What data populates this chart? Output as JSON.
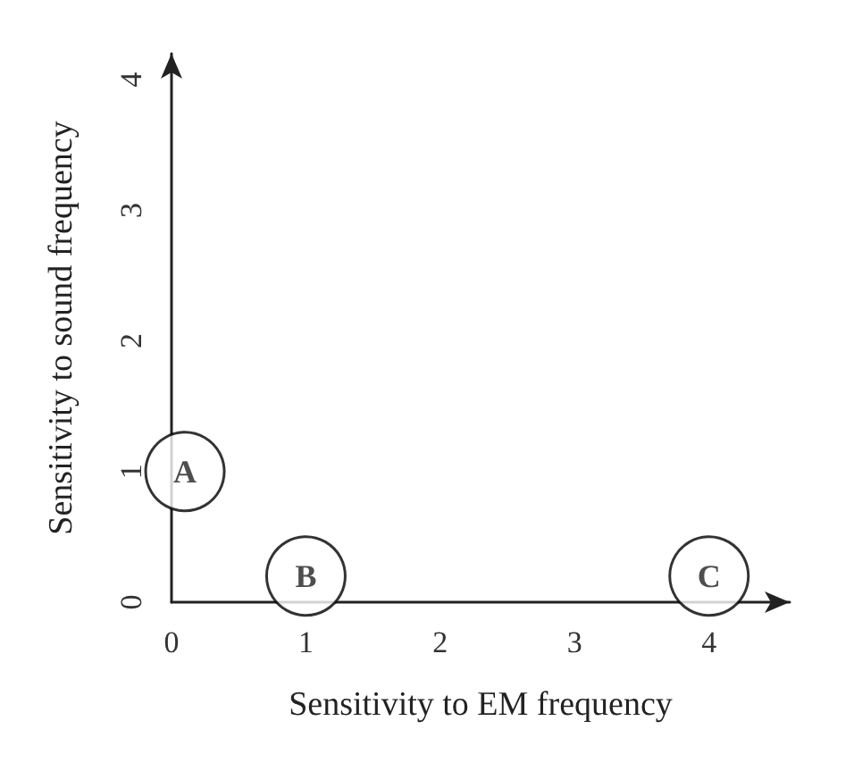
{
  "chart_data": {
    "type": "scatter",
    "xlabel": "Sensitivity to EM frequency",
    "ylabel": "Sensitivity to sound frequency",
    "xlim": [
      0,
      4.6
    ],
    "ylim": [
      0,
      4.2
    ],
    "xticks": [
      0,
      1,
      2,
      3,
      4
    ],
    "yticks": [
      0,
      1,
      2,
      3,
      4
    ],
    "grid": false,
    "legend": false,
    "marker": "circle",
    "series": [
      {
        "name": "A",
        "color": "#000000",
        "x": [
          0.1
        ],
        "values": [
          1
        ]
      },
      {
        "name": "B",
        "color": "#000000",
        "x": [
          1
        ],
        "values": [
          0.2
        ]
      },
      {
        "name": "C",
        "color": "#000000",
        "x": [
          4
        ],
        "values": [
          0.2
        ]
      }
    ]
  }
}
